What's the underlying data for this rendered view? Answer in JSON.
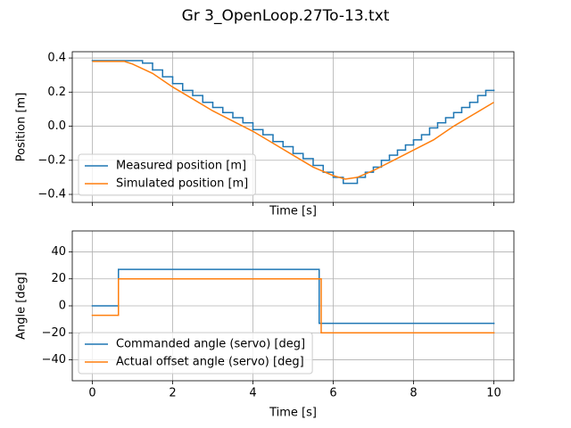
{
  "title": "Gr 3_OpenLoop.27To-13.txt",
  "chart_data": [
    {
      "type": "line",
      "xlabel": "Time [s]",
      "ylabel": "Position [m]",
      "xlim": [
        -0.5,
        10.5
      ],
      "ylim": [
        -0.447,
        0.437
      ],
      "xticks": [
        0,
        2,
        4,
        6,
        8,
        10
      ],
      "yticks": [
        {
          "value": -0.4,
          "label": "−0.4"
        },
        {
          "value": -0.2,
          "label": "−0.2"
        },
        {
          "value": 0,
          "label": "0.0"
        },
        {
          "value": 0.2,
          "label": "0.2"
        },
        {
          "value": 0.4,
          "label": "0.4"
        }
      ],
      "show_xtick_labels": false,
      "grid": true,
      "legend": "lower left",
      "series": [
        {
          "name": "Measured position [m]",
          "color": "#1f77b4",
          "drawstyle": "steps-post",
          "x": [
            0,
            1.25,
            1.5,
            1.75,
            2.0,
            2.25,
            2.5,
            2.75,
            3.0,
            3.25,
            3.5,
            3.75,
            4.0,
            4.25,
            4.5,
            4.75,
            5.0,
            5.25,
            5.5,
            5.75,
            6.0,
            6.25,
            6.6,
            6.8,
            7.0,
            7.2,
            7.4,
            7.6,
            7.8,
            8.0,
            8.2,
            8.4,
            8.6,
            8.8,
            9.0,
            9.2,
            9.4,
            9.6,
            9.8,
            10
          ],
          "values": [
            0.385,
            0.37,
            0.33,
            0.29,
            0.25,
            0.21,
            0.18,
            0.14,
            0.11,
            0.08,
            0.05,
            0.02,
            -0.02,
            -0.05,
            -0.09,
            -0.12,
            -0.16,
            -0.19,
            -0.23,
            -0.27,
            -0.3,
            -0.335,
            -0.3,
            -0.27,
            -0.24,
            -0.2,
            -0.17,
            -0.14,
            -0.11,
            -0.08,
            -0.05,
            -0.01,
            0.02,
            0.05,
            0.08,
            0.11,
            0.14,
            0.18,
            0.21,
            0.21
          ]
        },
        {
          "name": "Simulated position [m]",
          "color": "#ff7f0e",
          "drawstyle": "default",
          "x": [
            0,
            0.8,
            1.0,
            1.5,
            2.0,
            2.5,
            3.0,
            3.5,
            4.0,
            4.5,
            5.0,
            5.5,
            6.0,
            6.3,
            6.6,
            7.0,
            7.5,
            8.0,
            8.5,
            9.0,
            9.5,
            10
          ],
          "values": [
            0.38,
            0.38,
            0.365,
            0.31,
            0.23,
            0.16,
            0.09,
            0.03,
            -0.03,
            -0.1,
            -0.17,
            -0.24,
            -0.29,
            -0.31,
            -0.3,
            -0.26,
            -0.2,
            -0.14,
            -0.08,
            0.0,
            0.07,
            0.14
          ]
        }
      ]
    },
    {
      "type": "line",
      "xlabel": "Time [s]",
      "ylabel": "Angle [deg]",
      "xlim": [
        -0.5,
        10.5
      ],
      "ylim": [
        -55.5,
        55.5
      ],
      "xticks": [
        0,
        2,
        4,
        6,
        8,
        10
      ],
      "yticks": [
        {
          "value": -40,
          "label": "−40"
        },
        {
          "value": -20,
          "label": "−20"
        },
        0,
        20,
        40
      ],
      "show_xtick_labels": true,
      "grid": true,
      "legend": "lower left",
      "series": [
        {
          "name": "Commanded angle (servo) [deg]",
          "color": "#1f77b4",
          "drawstyle": "steps-post",
          "x": [
            0,
            0.65,
            5.65,
            10
          ],
          "values": [
            0,
            27,
            -13,
            -13
          ]
        },
        {
          "name": "Actual offset angle (servo) [deg]",
          "color": "#ff7f0e",
          "drawstyle": "steps-post",
          "x": [
            0,
            0.65,
            5.7,
            10
          ],
          "values": [
            -7,
            20,
            -20,
            -20
          ]
        }
      ]
    }
  ]
}
